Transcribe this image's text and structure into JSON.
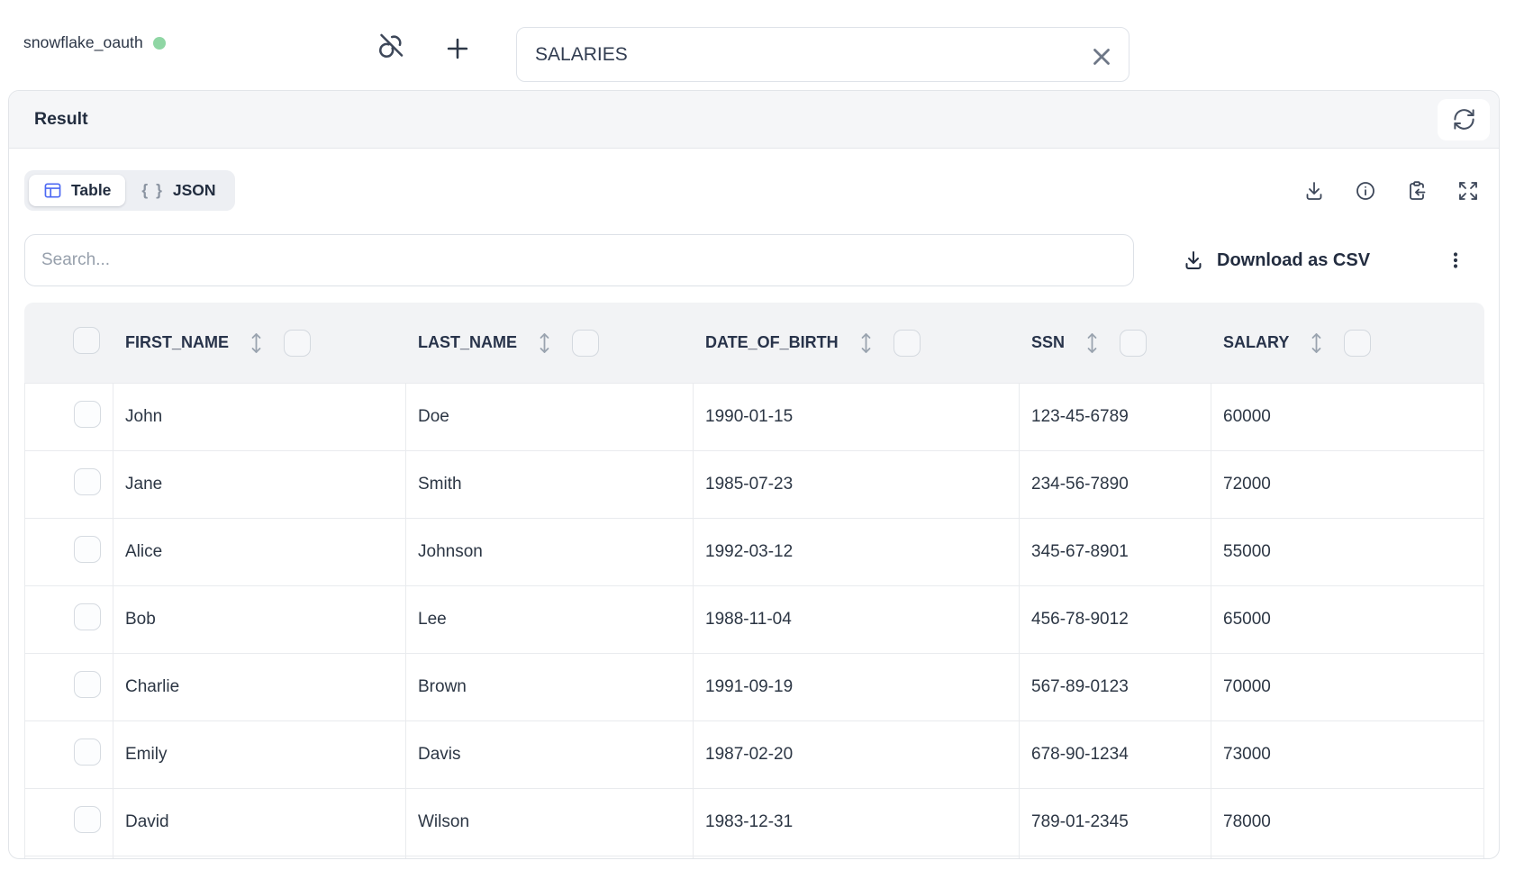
{
  "connection": {
    "name": "snowflake_oauth",
    "status": "connected"
  },
  "topbar_icons": {
    "unlink": "link-off-icon",
    "add": "plus-icon"
  },
  "query_input": {
    "value": "SALARIES"
  },
  "result_panel": {
    "title": "Result"
  },
  "view_tabs": [
    {
      "label": "Table",
      "active": true,
      "icon": "table-icon"
    },
    {
      "label": "JSON",
      "active": false,
      "icon": "braces-icon",
      "braces": "{ }"
    }
  ],
  "panel_icons": [
    "download-icon",
    "info-icon",
    "clipboard-paste-icon",
    "expand-icon"
  ],
  "toolbar": {
    "search_placeholder": "Search...",
    "download_csv_label": "Download as CSV"
  },
  "table": {
    "columns": [
      "FIRST_NAME",
      "LAST_NAME",
      "DATE_OF_BIRTH",
      "SSN",
      "SALARY"
    ],
    "rows": [
      [
        "John",
        "Doe",
        "1990-01-15",
        "123-45-6789",
        "60000"
      ],
      [
        "Jane",
        "Smith",
        "1985-07-23",
        "234-56-7890",
        "72000"
      ],
      [
        "Alice",
        "Johnson",
        "1992-03-12",
        "345-67-8901",
        "55000"
      ],
      [
        "Bob",
        "Lee",
        "1988-11-04",
        "456-78-9012",
        "65000"
      ],
      [
        "Charlie",
        "Brown",
        "1991-09-19",
        "567-89-0123",
        "70000"
      ],
      [
        "Emily",
        "Davis",
        "1987-02-20",
        "678-90-1234",
        "73000"
      ],
      [
        "David",
        "Wilson",
        "1983-12-31",
        "789-01-2345",
        "78000"
      ]
    ]
  },
  "colors": {
    "accent": "#4c68f3",
    "green": "#8fd6a4",
    "text": "#2b3647",
    "header-bg": "#f2f3f5",
    "bar-bg": "#f5f6f8",
    "border": "#e6e8ec"
  }
}
